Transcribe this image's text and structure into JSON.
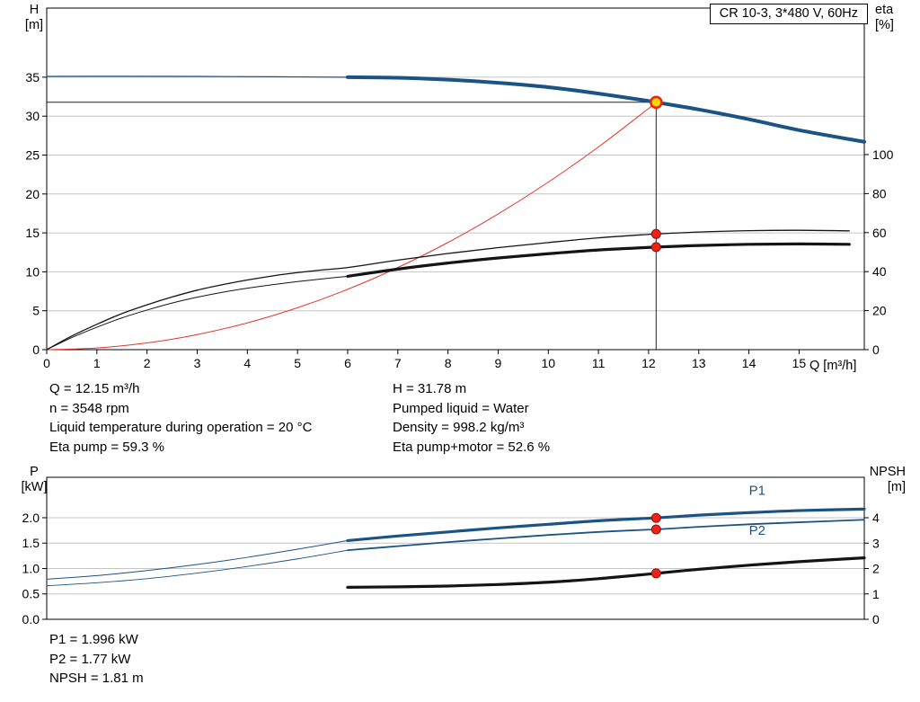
{
  "colors": {
    "curve_blue": "#1b5384",
    "curve_black": "#141414",
    "curve_red": "#e0362c",
    "dot_red": "#ee2215",
    "duty_yellow": "#ffd800",
    "grid": "#c4c4c4",
    "frame": "#000000",
    "text": "#000000"
  },
  "info_top": {
    "left": [
      "Q = 12.15 m³/h",
      "n = 3548 rpm",
      "Liquid temperature during operation = 20 °C",
      "Eta pump = 59.3 %"
    ],
    "right": [
      "H = 31.78 m",
      "Pumped liquid = Water",
      "Density = 998.2 kg/m³",
      "Eta pump+motor = 52.6 %"
    ]
  },
  "info_bottom": [
    "P1 = 1.996 kW",
    "P2 = 1.77 kW",
    "NPSH = 1.81 m"
  ],
  "chart_data": [
    {
      "type": "line",
      "title": "CR 10-3, 3*480 V, 60Hz",
      "x": {
        "name": "Q [m³/h]",
        "min": 0,
        "max": 16.3,
        "ticks": [
          "0",
          "1",
          "2",
          "3",
          "4",
          "5",
          "6",
          "7",
          "8",
          "9",
          "10",
          "11",
          "12",
          "13",
          "14",
          "15"
        ]
      },
      "y_left": {
        "name": "H",
        "unit": "[m]",
        "min": 0,
        "max": 43.88,
        "ticks": [
          "0",
          "5",
          "10",
          "15",
          "20",
          "25",
          "30",
          "35"
        ]
      },
      "y_right": {
        "name": "eta",
        "unit": "[%]",
        "min": 0,
        "max": 175.1,
        "ticks": [
          "0",
          "20",
          "40",
          "60",
          "80",
          "100"
        ]
      },
      "grid": true,
      "legend": "none",
      "duty_point": {
        "q": 12.15,
        "h": 31.78
      },
      "series": [
        {
          "name": "h-curve-extension",
          "label": "Head curve (outside range)",
          "axis": "left",
          "color": "curve_blue",
          "width": 1.2,
          "points": [
            [
              0,
              35.1
            ],
            [
              1.5,
              35.12
            ],
            [
              3,
              35.1
            ],
            [
              4.5,
              35.06
            ],
            [
              6,
              35
            ]
          ]
        },
        {
          "name": "h-curve",
          "label": "H (head)",
          "axis": "left",
          "color": "curve_blue",
          "width": 4,
          "points": [
            [
              6,
              35
            ],
            [
              7,
              34.93
            ],
            [
              8,
              34.68
            ],
            [
              9,
              34.28
            ],
            [
              10,
              33.72
            ],
            [
              11,
              32.9
            ],
            [
              12,
              31.95
            ],
            [
              12.15,
              31.78
            ],
            [
              13,
              30.85
            ],
            [
              14,
              29.6
            ],
            [
              15,
              28.2
            ],
            [
              16.3,
              26.7
            ]
          ]
        },
        {
          "name": "affinity-curve",
          "label": "Affinity parabola to duty point",
          "axis": "left",
          "color": "curve_red",
          "width": 1,
          "points": [
            [
              0,
              0
            ],
            [
              1,
              0.22
            ],
            [
              2,
              0.86
            ],
            [
              3,
              1.94
            ],
            [
              4,
              3.44
            ],
            [
              5,
              5.38
            ],
            [
              6,
              7.75
            ],
            [
              7,
              10.55
            ],
            [
              8,
              13.77
            ],
            [
              9,
              17.43
            ],
            [
              10,
              21.52
            ],
            [
              11,
              26.04
            ],
            [
              12,
              30.99
            ],
            [
              12.15,
              31.78
            ]
          ]
        },
        {
          "name": "eta-pump-curve",
          "label": "Eta pump",
          "axis": "right",
          "color": "curve_black",
          "width": 1.3,
          "points": [
            [
              0,
              0
            ],
            [
              0.5,
              7
            ],
            [
              1,
              13
            ],
            [
              1.5,
              18.5
            ],
            [
              2,
              23
            ],
            [
              2.5,
              27
            ],
            [
              3,
              30.5
            ],
            [
              3.5,
              33.3
            ],
            [
              4,
              35.7
            ],
            [
              4.5,
              37.8
            ],
            [
              5,
              39.5
            ],
            [
              5.5,
              40.9
            ],
            [
              6,
              42.1
            ],
            [
              7,
              45.9
            ],
            [
              8,
              49.3
            ],
            [
              9,
              52.3
            ],
            [
              10,
              54.9
            ],
            [
              11,
              57.3
            ],
            [
              12,
              59.1
            ],
            [
              12.15,
              59.3
            ],
            [
              13,
              60.3
            ],
            [
              14,
              61
            ],
            [
              15,
              61.2
            ],
            [
              16,
              60.9
            ]
          ]
        },
        {
          "name": "eta-pump-motor-extension",
          "label": "Eta pump+motor (outside range)",
          "axis": "right",
          "color": "curve_black",
          "width": 1,
          "points": [
            [
              0,
              0
            ],
            [
              0.5,
              6.2
            ],
            [
              1,
              11.5
            ],
            [
              1.5,
              16.3
            ],
            [
              2,
              20.3
            ],
            [
              2.5,
              23.9
            ],
            [
              3,
              26.9
            ],
            [
              3.5,
              29.4
            ],
            [
              4,
              31.5
            ],
            [
              4.5,
              33.3
            ],
            [
              5,
              34.9
            ],
            [
              5.5,
              36.3
            ],
            [
              6,
              37.6
            ]
          ]
        },
        {
          "name": "eta-pump-motor-curve",
          "label": "Eta pump+motor",
          "axis": "right",
          "color": "curve_black",
          "width": 3.2,
          "points": [
            [
              6,
              37.6
            ],
            [
              7,
              41.3
            ],
            [
              8,
              44.4
            ],
            [
              9,
              47
            ],
            [
              10,
              49.2
            ],
            [
              11,
              51.1
            ],
            [
              12,
              52.4
            ],
            [
              12.15,
              52.6
            ],
            [
              13,
              53.4
            ],
            [
              14,
              54
            ],
            [
              15,
              54.2
            ],
            [
              16,
              54
            ]
          ]
        }
      ],
      "markers": [
        {
          "q": 12.15,
          "v": 59.3,
          "axis": "right",
          "style": "dot"
        },
        {
          "q": 12.15,
          "v": 52.6,
          "axis": "right",
          "style": "dot"
        },
        {
          "q": 12.15,
          "v": 31.78,
          "axis": "left",
          "style": "duty"
        }
      ]
    },
    {
      "type": "line",
      "title": "",
      "x": {
        "name": "",
        "min": 0,
        "max": 16.3,
        "ticks": []
      },
      "y_left": {
        "name": "P",
        "unit": "[kW]",
        "min": 0,
        "max": 2.796,
        "ticks": [
          "0.0",
          "0.5",
          "1.0",
          "1.5",
          "2.0"
        ]
      },
      "y_right": {
        "name": "NPSH",
        "unit": "[m]",
        "min": 0,
        "max": 5.593,
        "ticks": [
          "0",
          "1",
          "2",
          "3",
          "4"
        ]
      },
      "grid": true,
      "legend": "inline",
      "series": [
        {
          "name": "p1-extension",
          "label": "P1 (outside range)",
          "axis": "left",
          "color": "curve_blue",
          "width": 1,
          "points": [
            [
              0,
              0.79
            ],
            [
              1,
              0.86
            ],
            [
              2,
              0.96
            ],
            [
              3,
              1.08
            ],
            [
              4,
              1.22
            ],
            [
              5,
              1.38
            ],
            [
              6,
              1.55
            ]
          ]
        },
        {
          "name": "p1-curve",
          "label": "P1",
          "axis": "left",
          "color": "curve_blue",
          "width": 3.2,
          "points": [
            [
              6,
              1.55
            ],
            [
              7,
              1.64
            ],
            [
              8,
              1.72
            ],
            [
              9,
              1.8
            ],
            [
              10,
              1.87
            ],
            [
              11,
              1.94
            ],
            [
              12,
              1.99
            ],
            [
              12.15,
              1.996
            ],
            [
              13,
              2.05
            ],
            [
              14,
              2.1
            ],
            [
              15,
              2.14
            ],
            [
              16.3,
              2.17
            ]
          ]
        },
        {
          "name": "p2-extension",
          "label": "P2 (outside range)",
          "axis": "left",
          "color": "curve_blue",
          "width": 0.9,
          "points": [
            [
              0,
              0.66
            ],
            [
              1,
              0.72
            ],
            [
              2,
              0.8
            ],
            [
              3,
              0.91
            ],
            [
              4,
              1.04
            ],
            [
              5,
              1.19
            ],
            [
              6,
              1.36
            ]
          ]
        },
        {
          "name": "p2-curve",
          "label": "P2",
          "axis": "left",
          "color": "curve_blue",
          "width": 1.8,
          "points": [
            [
              6,
              1.36
            ],
            [
              7,
              1.44
            ],
            [
              8,
              1.52
            ],
            [
              9,
              1.59
            ],
            [
              10,
              1.66
            ],
            [
              11,
              1.72
            ],
            [
              12,
              1.765
            ],
            [
              12.15,
              1.77
            ],
            [
              13,
              1.82
            ],
            [
              14,
              1.87
            ],
            [
              15,
              1.91
            ],
            [
              16.3,
              1.96
            ]
          ]
        },
        {
          "name": "npsh-curve",
          "label": "NPSH",
          "axis": "right",
          "color": "curve_black",
          "width": 3.2,
          "points": [
            [
              6,
              1.26
            ],
            [
              7,
              1.28
            ],
            [
              8,
              1.31
            ],
            [
              9,
              1.37
            ],
            [
              10,
              1.46
            ],
            [
              11,
              1.6
            ],
            [
              12,
              1.78
            ],
            [
              12.15,
              1.81
            ],
            [
              13,
              1.97
            ],
            [
              14,
              2.13
            ],
            [
              15,
              2.27
            ],
            [
              16.3,
              2.42
            ]
          ]
        }
      ],
      "labels": [
        {
          "text": "P1",
          "q": 14.0,
          "v": 2.45,
          "axis": "left"
        },
        {
          "text": "P2",
          "q": 14.0,
          "v": 1.66,
          "axis": "left"
        }
      ],
      "markers": [
        {
          "q": 12.15,
          "v": 1.996,
          "axis": "left",
          "style": "dot"
        },
        {
          "q": 12.15,
          "v": 1.77,
          "axis": "left",
          "style": "dot"
        },
        {
          "q": 12.15,
          "v": 1.81,
          "axis": "right",
          "style": "dot"
        }
      ]
    }
  ]
}
